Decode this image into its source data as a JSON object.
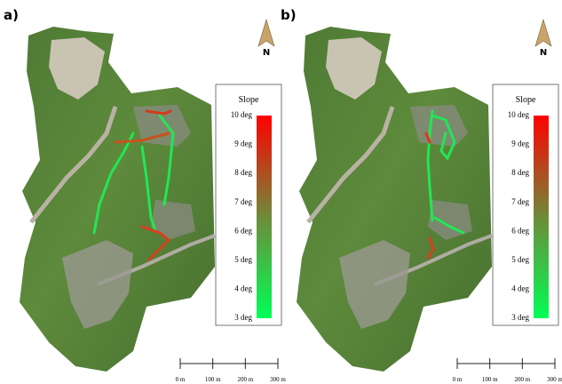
{
  "panels": [
    {
      "label": "a)",
      "north": "N",
      "legend": {
        "title": "Slope",
        "ticks": [
          "3 deg",
          "4 deg",
          "5 deg",
          "6 deg",
          "7 deg",
          "8 deg",
          "9 deg",
          "10 deg"
        ]
      },
      "scale": [
        "0 m",
        "100 m",
        "200 m",
        "300 m"
      ]
    },
    {
      "label": "b)",
      "north": "N",
      "legend": {
        "title": "Slope",
        "ticks": [
          "3 deg",
          "4 deg",
          "5 deg",
          "6 deg",
          "7 deg",
          "8 deg",
          "9 deg",
          "10 deg"
        ]
      },
      "scale": [
        "0 m",
        "100 m",
        "200 m",
        "300 m"
      ]
    }
  ]
}
